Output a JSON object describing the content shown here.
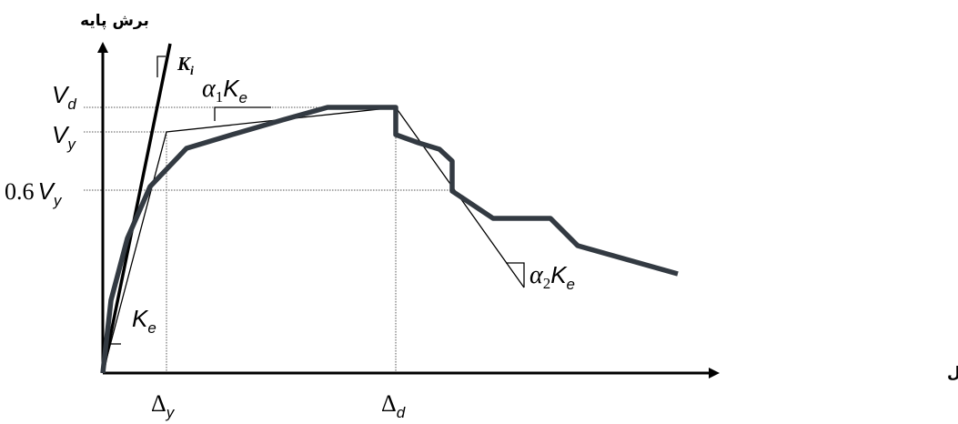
{
  "diagram": {
    "y_axis_label": "برش پایه",
    "x_axis_label": "تغییرمکان نقطه کنترل",
    "y_ticks": {
      "vd": {
        "main": "V",
        "sub": "d"
      },
      "vy": {
        "main": "V",
        "sub": "y"
      },
      "v06": {
        "coef": "0.6",
        "main": "V",
        "sub": "y"
      }
    },
    "x_ticks": {
      "dy": {
        "main": "Δ",
        "sub": "y"
      },
      "dd": {
        "main": "Δ",
        "sub": "d"
      }
    },
    "stiffness_labels": {
      "ki": {
        "main": "K",
        "sub": "i"
      },
      "ke": {
        "main": "K",
        "sub": "e"
      },
      "a1ke": {
        "alpha": "α",
        "alpha_sub": "1",
        "main": "K",
        "sub": "e"
      },
      "a2ke": {
        "alpha": "α",
        "alpha_sub": "2",
        "main": "K",
        "sub": "e"
      }
    },
    "colors": {
      "curve": "#333a42",
      "axes": "#000000",
      "guides": "#555555"
    }
  }
}
